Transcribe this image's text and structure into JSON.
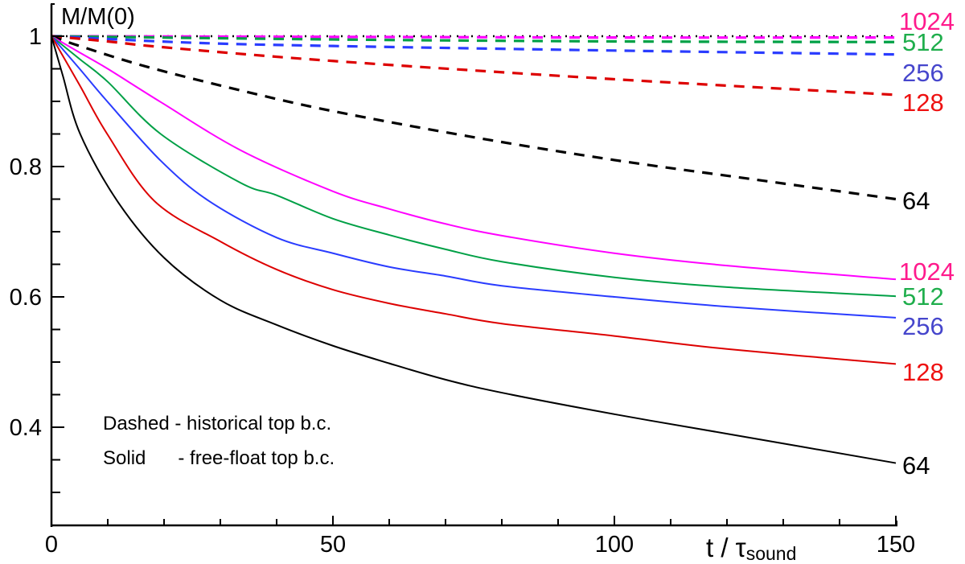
{
  "chart_data": {
    "type": "line",
    "title": "",
    "ylabel": "M/M(0)",
    "xlabel": "t / τ",
    "xlabel_subscript": "sound",
    "xlim": [
      0,
      150
    ],
    "ylim": [
      0.25,
      1.05
    ],
    "x_ticks": [
      "0",
      "50",
      "100",
      "150"
    ],
    "x_tick_values": [
      0,
      50,
      100,
      150
    ],
    "x_minor_step": 10,
    "y_ticks": [
      "0.4",
      "0.6",
      "0.8",
      "1"
    ],
    "y_tick_values": [
      0.4,
      0.6,
      0.8,
      1.0
    ],
    "y_minor_step": 0.05,
    "grid": false,
    "annotations": [
      "Dashed - historical top b.c.",
      "Solid      - free-float top b.c."
    ],
    "reference_line": {
      "name": "reference",
      "style": "dotted",
      "color": "#000000",
      "value": 1.0
    },
    "series": [
      {
        "name": "1024",
        "style": "dashed",
        "color": "#ff00ff",
        "label_color": "#ff1a8c",
        "x": [
          0,
          50,
          100,
          150
        ],
        "y": [
          1.0,
          0.999,
          0.998,
          0.998
        ]
      },
      {
        "name": "512",
        "style": "dashed",
        "color": "#00a046",
        "label_color": "#1fae4c",
        "x": [
          0,
          50,
          100,
          150
        ],
        "y": [
          1.0,
          0.995,
          0.992,
          0.991
        ]
      },
      {
        "name": "256",
        "style": "dashed",
        "color": "#2a3cff",
        "label_color": "#4646cc",
        "x": [
          0,
          25,
          50,
          100,
          150
        ],
        "y": [
          1.0,
          0.99,
          0.985,
          0.978,
          0.972
        ]
      },
      {
        "name": "128",
        "style": "dashed",
        "color": "#dd0000",
        "label_color": "#ee1111",
        "x": [
          0,
          10,
          20,
          50,
          100,
          150
        ],
        "y": [
          1.0,
          0.992,
          0.983,
          0.962,
          0.934,
          0.91
        ]
      },
      {
        "name": "64",
        "style": "dashed",
        "color": "#000000",
        "label_color": "#000000",
        "x": [
          0,
          5,
          17,
          34,
          50,
          75,
          100,
          125,
          150
        ],
        "y": [
          1.0,
          0.985,
          0.953,
          0.916,
          0.885,
          0.845,
          0.81,
          0.78,
          0.75
        ]
      },
      {
        "name": "1024",
        "style": "solid",
        "color": "#ff00ff",
        "label_color": "#ff1a8c",
        "x": [
          0,
          5,
          10,
          19.4,
          33.6,
          50,
          60,
          70,
          80,
          100,
          120,
          150
        ],
        "y": [
          1.0,
          0.975,
          0.95,
          0.899,
          0.825,
          0.762,
          0.735,
          0.712,
          0.694,
          0.667,
          0.648,
          0.627
        ]
      },
      {
        "name": "512",
        "style": "solid",
        "color": "#00a046",
        "label_color": "#1fae4c",
        "x": [
          0,
          5,
          10,
          19.4,
          33.6,
          40,
          50,
          60,
          70,
          80,
          100,
          120,
          150
        ],
        "y": [
          1.0,
          0.965,
          0.93,
          0.85,
          0.775,
          0.756,
          0.72,
          0.695,
          0.673,
          0.654,
          0.63,
          0.615,
          0.601
        ]
      },
      {
        "name": "256",
        "style": "solid",
        "color": "#2a3cff",
        "label_color": "#4646cc",
        "x": [
          0,
          5,
          9.9,
          19.4,
          28,
          40,
          50,
          60,
          70,
          80,
          100,
          120,
          150
        ],
        "y": [
          1.0,
          0.95,
          0.9,
          0.809,
          0.747,
          0.691,
          0.667,
          0.646,
          0.632,
          0.617,
          0.6,
          0.585,
          0.568
        ]
      },
      {
        "name": "128",
        "style": "solid",
        "color": "#dd0000",
        "label_color": "#ee1111",
        "x": [
          0,
          5,
          9.9,
          18.3,
          30,
          40,
          50,
          60,
          70,
          80,
          100,
          120,
          150
        ],
        "y": [
          1.0,
          0.925,
          0.85,
          0.747,
          0.685,
          0.642,
          0.611,
          0.59,
          0.574,
          0.559,
          0.54,
          0.52,
          0.497
        ]
      },
      {
        "name": "64",
        "style": "solid",
        "color": "#000000",
        "label_color": "#000000",
        "x": [
          0,
          2,
          5.1,
          11.7,
          20,
          30,
          40,
          50,
          60,
          70,
          80,
          100,
          120,
          150
        ],
        "y": [
          1.0,
          0.94,
          0.85,
          0.747,
          0.66,
          0.595,
          0.557,
          0.525,
          0.498,
          0.473,
          0.453,
          0.42,
          0.39,
          0.345
        ]
      }
    ]
  }
}
